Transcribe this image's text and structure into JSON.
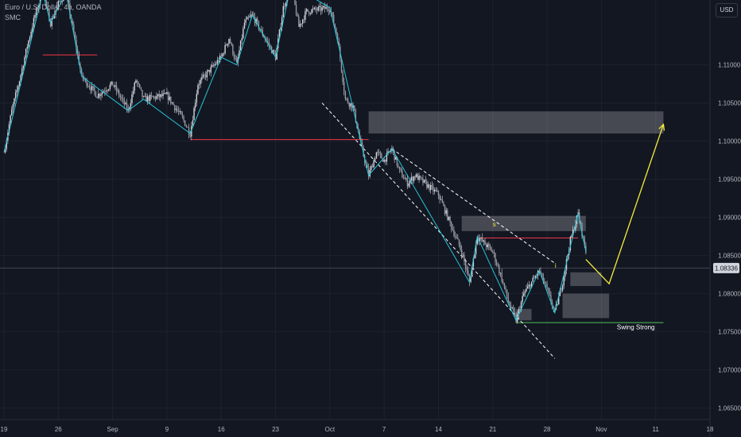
{
  "header": {
    "symbol_title": "Euro / U.S. Dollar, 4h, OANDA",
    "indicator": "SMC"
  },
  "currency_button": "USD",
  "colors": {
    "background": "#131722",
    "grid": "#1e222d",
    "candle_up": "#d1d4dc",
    "candle_down": "#d1d4dc",
    "swing_line": "#26c6da",
    "bos_line": "#f23645",
    "zone": "#ffffff",
    "projection": "#f5eb3b",
    "swing_strong": "#4caf50",
    "channel": "#ffffff",
    "price_tag": "#d1d4dc"
  },
  "chart_data": {
    "type": "candlestick",
    "title": "",
    "xlabel": "",
    "ylabel": "",
    "x_ticks": [
      "19",
      "26",
      "Sep",
      "9",
      "16",
      "23",
      "Oct",
      "7",
      "14",
      "21",
      "28",
      "Nov",
      "11",
      "18"
    ],
    "y_ticks": [
      "1.11000",
      "1.10500",
      "1.10000",
      "1.09500",
      "1.09000",
      "1.08500",
      "1.08000",
      "1.07500",
      "1.07000",
      "1.06500"
    ],
    "ylim": [
      1.0635,
      1.1185
    ],
    "current_price": "1.08336",
    "price_path": [
      [
        "2024-08-19",
        1.0985
      ],
      [
        "2024-08-20",
        1.104
      ],
      [
        "2024-08-21",
        1.108
      ],
      [
        "2024-08-22",
        1.1125
      ],
      [
        "2024-08-23",
        1.1165
      ],
      [
        "2024-08-24",
        1.1195
      ],
      [
        "2024-08-25",
        1.1155
      ],
      [
        "2024-08-26",
        1.118
      ],
      [
        "2024-08-27",
        1.1195
      ],
      [
        "2024-08-28",
        1.114
      ],
      [
        "2024-08-29",
        1.1085
      ],
      [
        "2024-08-31",
        1.106
      ],
      [
        "2024-09-02",
        1.1075
      ],
      [
        "2024-09-04",
        1.104
      ],
      [
        "2024-09-05",
        1.108
      ],
      [
        "2024-09-06",
        1.1055
      ],
      [
        "2024-09-09",
        1.106
      ],
      [
        "2024-09-10",
        1.1045
      ],
      [
        "2024-09-11",
        1.103
      ],
      [
        "2024-09-12",
        1.101
      ],
      [
        "2024-09-13",
        1.1075
      ],
      [
        "2024-09-16",
        1.111
      ],
      [
        "2024-09-17",
        1.1135
      ],
      [
        "2024-09-18",
        1.11
      ],
      [
        "2024-09-19",
        1.1155
      ],
      [
        "2024-09-20",
        1.1165
      ],
      [
        "2024-09-23",
        1.111
      ],
      [
        "2024-09-24",
        1.1175
      ],
      [
        "2024-09-25",
        1.1205
      ],
      [
        "2024-09-26",
        1.115
      ],
      [
        "2024-09-27",
        1.117
      ],
      [
        "2024-09-30",
        1.1175
      ],
      [
        "2024-10-01",
        1.1135
      ],
      [
        "2024-10-02",
        1.1055
      ],
      [
        "2024-10-03",
        1.1045
      ],
      [
        "2024-10-04",
        1.0995
      ],
      [
        "2024-10-05",
        1.0955
      ],
      [
        "2024-10-06",
        1.0985
      ],
      [
        "2024-10-07",
        1.0975
      ],
      [
        "2024-10-08",
        1.099
      ],
      [
        "2024-10-09",
        1.096
      ],
      [
        "2024-10-10",
        1.0945
      ],
      [
        "2024-10-11",
        1.0955
      ],
      [
        "2024-10-14",
        1.093
      ],
      [
        "2024-10-15",
        1.0905
      ],
      [
        "2024-10-16",
        1.088
      ],
      [
        "2024-10-17",
        1.0855
      ],
      [
        "2024-10-18",
        1.0815
      ],
      [
        "2024-10-19",
        1.0875
      ],
      [
        "2024-10-21",
        1.0855
      ],
      [
        "2024-10-22",
        1.0825
      ],
      [
        "2024-10-23",
        1.079
      ],
      [
        "2024-10-24",
        1.0765
      ],
      [
        "2024-10-25",
        1.08
      ],
      [
        "2024-10-26",
        1.0815
      ],
      [
        "2024-10-27",
        1.083
      ],
      [
        "2024-10-28",
        1.0805
      ],
      [
        "2024-10-29",
        1.0775
      ],
      [
        "2024-10-30",
        1.0815
      ],
      [
        "2024-10-31",
        1.087
      ],
      [
        "2024-11-01",
        1.0905
      ],
      [
        "2024-11-02",
        1.0855
      ]
    ],
    "swing_points": [
      [
        "2024-08-19",
        1.0985
      ],
      [
        "2024-08-24",
        1.1195
      ],
      [
        "2024-08-25",
        1.1155
      ],
      [
        "2024-08-27",
        1.1195
      ],
      [
        "2024-08-29",
        1.1085
      ],
      [
        "2024-09-04",
        1.104
      ],
      [
        "2024-09-06",
        1.1055
      ],
      [
        "2024-09-12",
        1.101
      ],
      [
        "2024-09-16",
        1.111
      ],
      [
        "2024-09-18",
        1.11
      ],
      [
        "2024-09-20",
        1.1165
      ],
      [
        "2024-09-23",
        1.111
      ],
      [
        "2024-09-25",
        1.1205
      ],
      [
        "2024-09-30",
        1.1175
      ],
      [
        "2024-10-05",
        1.0955
      ],
      [
        "2024-10-08",
        1.099
      ],
      [
        "2024-10-18",
        1.0815
      ],
      [
        "2024-10-19",
        1.0875
      ],
      [
        "2024-10-24",
        1.0765
      ],
      [
        "2024-10-27",
        1.083
      ],
      [
        "2024-10-29",
        1.0775
      ],
      [
        "2024-11-01",
        1.0905
      ],
      [
        "2024-11-02",
        1.0855
      ]
    ],
    "bos_levels": [
      {
        "from": "2024-08-24",
        "to": "2024-08-31",
        "price": 1.1113
      },
      {
        "from": "2024-09-12",
        "to": "2024-10-05",
        "price": 1.1002
      },
      {
        "from": "2024-10-19",
        "to": "2024-11-01",
        "price": 1.0873
      }
    ],
    "zones": [
      {
        "from": "2024-10-05",
        "to": "2024-11-12",
        "low": 1.101,
        "high": 1.1039
      },
      {
        "from": "2024-10-17",
        "to": "2024-11-02",
        "low": 1.0882,
        "high": 1.0902
      },
      {
        "from": "2024-10-31",
        "to": "2024-11-04",
        "low": 1.081,
        "high": 1.0828
      },
      {
        "from": "2024-10-24",
        "to": "2024-10-26",
        "low": 1.0765,
        "high": 1.078
      },
      {
        "from": "2024-10-30",
        "to": "2024-11-05",
        "low": 1.0768,
        "high": 1.08
      }
    ],
    "channel": [
      {
        "from": [
          "2024-09-29",
          1.105
        ],
        "to": [
          "2024-10-29",
          1.0715
        ]
      },
      {
        "from": [
          "2024-10-08",
          1.099
        ],
        "to": [
          "2024-10-29",
          1.084
        ]
      }
    ],
    "projection": [
      [
        "2024-11-02",
        1.0845
      ],
      [
        "2024-11-05",
        1.0813
      ],
      [
        "2024-11-12",
        1.1022
      ]
    ],
    "swing_strong_level": {
      "from": "2024-10-24",
      "to": "2024-11-12",
      "price": 1.0762
    },
    "annotations": [
      {
        "text": "Swing Strong",
        "date": "2024-11-06",
        "price": 1.0753,
        "color": "#ffffff"
      },
      {
        "text": "i",
        "date": "2024-10-29",
        "price": 1.0834,
        "color": "#f5eb3b"
      },
      {
        "text": "s",
        "date": "2024-10-21",
        "price": 1.0888,
        "color": "#f5eb3b"
      }
    ]
  }
}
